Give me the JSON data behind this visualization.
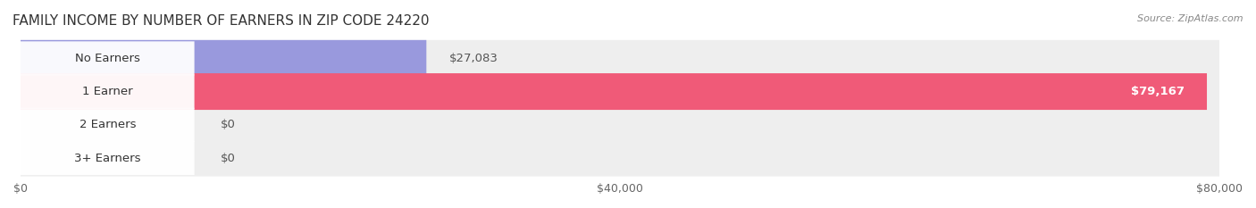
{
  "title": "FAMILY INCOME BY NUMBER OF EARNERS IN ZIP CODE 24220",
  "source": "Source: ZipAtlas.com",
  "categories": [
    "No Earners",
    "1 Earner",
    "2 Earners",
    "3+ Earners"
  ],
  "values": [
    27083,
    79167,
    0,
    0
  ],
  "bar_colors": [
    "#9999dd",
    "#f05a78",
    "#f5b97f",
    "#f09090"
  ],
  "track_color": "#eeeeee",
  "label_values": [
    "$27,083",
    "$79,167",
    "$0",
    "$0"
  ],
  "xlim": [
    0,
    80000
  ],
  "xticks": [
    0,
    40000,
    80000
  ],
  "xtick_labels": [
    "$0",
    "$40,000",
    "$80,000"
  ],
  "background_color": "#ffffff",
  "bar_height": 0.55,
  "title_fontsize": 11,
  "label_fontsize": 9.5,
  "tick_fontsize": 9
}
